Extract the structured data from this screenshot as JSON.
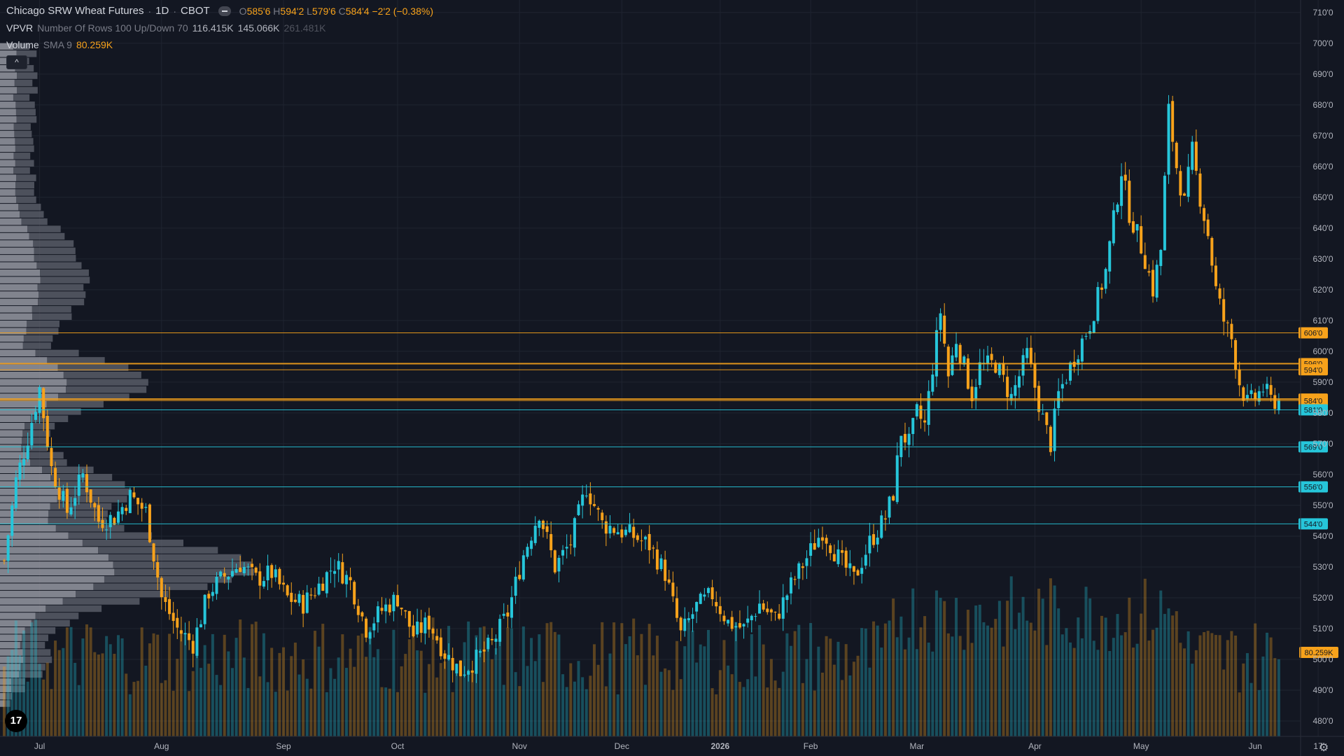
{
  "header": {
    "symbol_title": "Chicago SRW Wheat Futures",
    "timeframe": "1D",
    "exchange": "CBOT",
    "ohlc": {
      "o_label": "O",
      "o_value": "585'6",
      "h_label": "H",
      "h_value": "594'2",
      "l_label": "L",
      "l_value": "579'6",
      "c_label": "C",
      "c_value": "584'4",
      "change": "−2'2 (−0.38%)"
    }
  },
  "indicators": {
    "vpvr": {
      "name": "VPVR",
      "params": "Number Of Rows 100 Up/Down 70",
      "v1": "116.415K",
      "v2": "145.066K",
      "v3": "261.481K"
    },
    "volume": {
      "name": "Volume",
      "params": "SMA 9",
      "value": "80.259K"
    }
  },
  "controls": {
    "collapse_label": "^"
  },
  "logo_text": "17",
  "colors": {
    "background": "#131722",
    "up": "#26c6da",
    "down": "#f7a21b",
    "grid": "#1f2430",
    "axis_text": "#b2b5be",
    "vp_up": "#9598a1",
    "vp_down": "#5d606b"
  },
  "chart_data": {
    "type": "candlestick",
    "price_axis": {
      "min": 4750,
      "max": 7120,
      "ticks": [
        "710'0",
        "700'0",
        "690'0",
        "680'0",
        "670'0",
        "660'0",
        "650'0",
        "640'0",
        "630'0",
        "620'0",
        "610'0",
        "600'0",
        "590'0",
        "580'0",
        "570'0",
        "560'0",
        "550'0",
        "540'0",
        "530'0",
        "520'0",
        "510'0",
        "500'0",
        "490'0",
        "480'0"
      ],
      "tick_values": [
        7100,
        7000,
        6900,
        6800,
        6700,
        6600,
        6500,
        6400,
        6300,
        6200,
        6100,
        6000,
        5900,
        5800,
        5700,
        5600,
        5500,
        5400,
        5300,
        5200,
        5100,
        5000,
        4900,
        4800
      ]
    },
    "time_axis": {
      "labels": [
        "Jul",
        "Aug",
        "Sep",
        "Oct",
        "Nov",
        "Dec",
        "2026",
        "Feb",
        "Mar",
        "Apr",
        "May",
        "Jun",
        "17"
      ],
      "label_index": [
        9,
        40,
        71,
        100,
        131,
        157,
        182,
        205,
        232,
        262,
        289,
        318,
        334
      ]
    },
    "horizontal_levels": [
      {
        "label": "606'0",
        "value": 6060,
        "color": "#f7a21b"
      },
      {
        "label": "596'0",
        "value": 5960,
        "color": "#f7a21b"
      },
      {
        "label": "594'0",
        "value": 5940,
        "color": "#f7a21b"
      },
      {
        "label": "584'4",
        "value": 5845,
        "color": "#f7a21b"
      },
      {
        "label": "584'0",
        "value": 5840,
        "color": "#f7a21b"
      },
      {
        "label": "581'0",
        "value": 5810,
        "color": "#26c6da"
      },
      {
        "label": "569'0",
        "value": 5690,
        "color": "#26c6da"
      },
      {
        "label": "556'0",
        "value": 5560,
        "color": "#26c6da"
      },
      {
        "label": "544'0",
        "value": 5440,
        "color": "#26c6da"
      }
    ],
    "volume_label": "80.259K",
    "anchors": [
      [
        0,
        5320
      ],
      [
        3,
        5580
      ],
      [
        6,
        5720
      ],
      [
        9,
        5880
      ],
      [
        12,
        5620
      ],
      [
        16,
        5480
      ],
      [
        20,
        5600
      ],
      [
        24,
        5450
      ],
      [
        28,
        5460
      ],
      [
        32,
        5530
      ],
      [
        36,
        5480
      ],
      [
        40,
        5200
      ],
      [
        44,
        5100
      ],
      [
        48,
        5050
      ],
      [
        52,
        5220
      ],
      [
        56,
        5270
      ],
      [
        60,
        5310
      ],
      [
        64,
        5260
      ],
      [
        68,
        5280
      ],
      [
        72,
        5200
      ],
      [
        76,
        5180
      ],
      [
        80,
        5240
      ],
      [
        84,
        5310
      ],
      [
        88,
        5250
      ],
      [
        92,
        5100
      ],
      [
        96,
        5160
      ],
      [
        100,
        5200
      ],
      [
        104,
        5080
      ],
      [
        108,
        5120
      ],
      [
        112,
        5020
      ],
      [
        116,
        4960
      ],
      [
        120,
        5000
      ],
      [
        124,
        5050
      ],
      [
        128,
        5150
      ],
      [
        132,
        5340
      ],
      [
        136,
        5480
      ],
      [
        140,
        5300
      ],
      [
        144,
        5380
      ],
      [
        148,
        5560
      ],
      [
        152,
        5440
      ],
      [
        156,
        5420
      ],
      [
        160,
        5400
      ],
      [
        164,
        5370
      ],
      [
        168,
        5280
      ],
      [
        172,
        5080
      ],
      [
        176,
        5170
      ],
      [
        180,
        5210
      ],
      [
        184,
        5120
      ],
      [
        188,
        5100
      ],
      [
        192,
        5180
      ],
      [
        196,
        5130
      ],
      [
        200,
        5240
      ],
      [
        204,
        5330
      ],
      [
        208,
        5420
      ],
      [
        212,
        5330
      ],
      [
        216,
        5260
      ],
      [
        220,
        5380
      ],
      [
        224,
        5460
      ],
      [
        226,
        5540
      ],
      [
        228,
        5740
      ],
      [
        230,
        5700
      ],
      [
        232,
        5800
      ],
      [
        234,
        5760
      ],
      [
        236,
        5950
      ],
      [
        238,
        6130
      ],
      [
        240,
        5920
      ],
      [
        242,
        6040
      ],
      [
        244,
        5950
      ],
      [
        246,
        5860
      ],
      [
        248,
        5950
      ],
      [
        252,
        5960
      ],
      [
        256,
        5850
      ],
      [
        260,
        5990
      ],
      [
        264,
        5780
      ],
      [
        266,
        5700
      ],
      [
        268,
        5860
      ],
      [
        272,
        5980
      ],
      [
        276,
        6090
      ],
      [
        280,
        6260
      ],
      [
        284,
        6590
      ],
      [
        286,
        6450
      ],
      [
        288,
        6380
      ],
      [
        290,
        6300
      ],
      [
        292,
        6200
      ],
      [
        294,
        6330
      ],
      [
        296,
        6780
      ],
      [
        298,
        6600
      ],
      [
        300,
        6480
      ],
      [
        302,
        6650
      ],
      [
        304,
        6500
      ],
      [
        306,
        6380
      ],
      [
        308,
        6200
      ],
      [
        310,
        6100
      ],
      [
        312,
        6040
      ],
      [
        314,
        5900
      ],
      [
        316,
        5830
      ],
      [
        318,
        5850
      ],
      [
        320,
        5880
      ],
      [
        322,
        5840
      ]
    ]
  }
}
